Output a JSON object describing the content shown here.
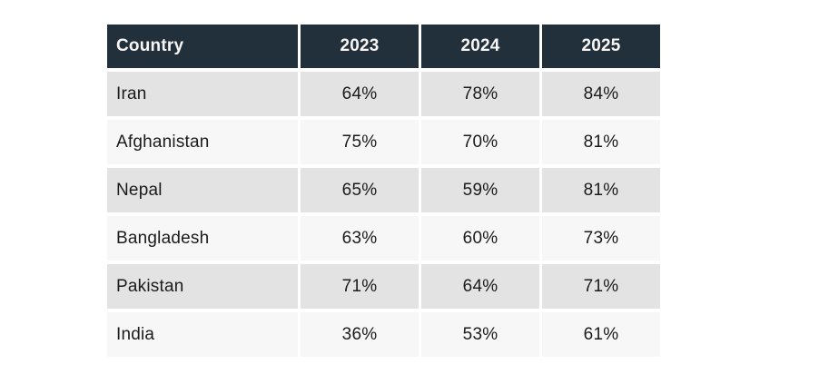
{
  "chart_data": {
    "type": "table",
    "title": "",
    "columns": [
      "Country",
      "2023",
      "2024",
      "2025"
    ],
    "rows": [
      {
        "country": "Iran",
        "values": [
          "64%",
          "78%",
          "84%"
        ]
      },
      {
        "country": "Afghanistan",
        "values": [
          "75%",
          "70%",
          "81%"
        ]
      },
      {
        "country": "Nepal",
        "values": [
          "65%",
          "59%",
          "81%"
        ]
      },
      {
        "country": "Bangladesh",
        "values": [
          "63%",
          "60%",
          "73%"
        ]
      },
      {
        "country": "Pakistan",
        "values": [
          "71%",
          "64%",
          "71%"
        ]
      },
      {
        "country": "India",
        "values": [
          "36%",
          "53%",
          "61%"
        ]
      }
    ],
    "series": [
      {
        "name": "Iran",
        "values": [
          64,
          78,
          84
        ]
      },
      {
        "name": "Afghanistan",
        "values": [
          75,
          70,
          81
        ]
      },
      {
        "name": "Nepal",
        "values": [
          65,
          59,
          81
        ]
      },
      {
        "name": "Bangladesh",
        "values": [
          63,
          60,
          73
        ]
      },
      {
        "name": "Pakistan",
        "values": [
          71,
          64,
          71
        ]
      },
      {
        "name": "India",
        "values": [
          36,
          53,
          61
        ]
      }
    ],
    "x": [
      "2023",
      "2024",
      "2025"
    ],
    "value_unit": "%"
  },
  "colors": {
    "header_bg": "#22303c",
    "header_text": "#f7f6f5",
    "row_odd_bg": "#e4e3e3",
    "row_even_bg": "#f8f7f7",
    "cell_text": "#1b1b1b",
    "page_bg": "#ffffff"
  }
}
